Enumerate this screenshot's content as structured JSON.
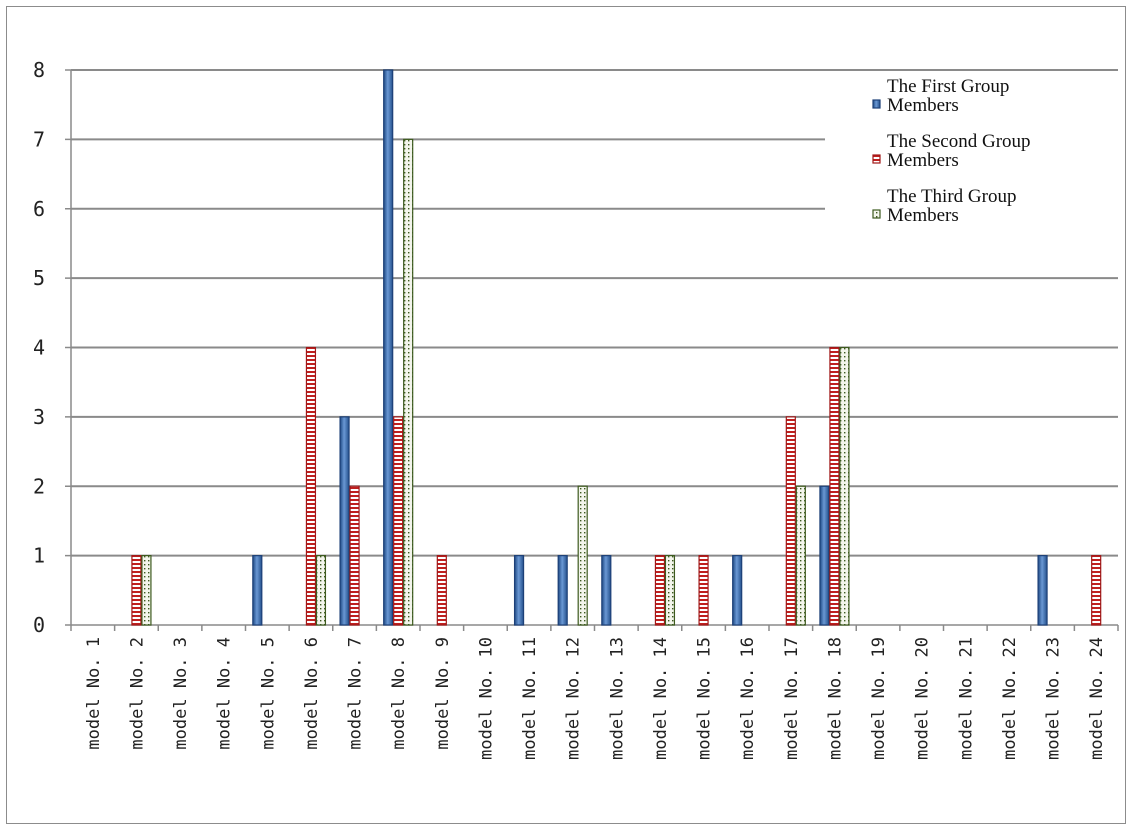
{
  "chart_data": {
    "type": "bar",
    "title": "",
    "xlabel": "",
    "ylabel": "",
    "ylim": [
      0,
      8
    ],
    "yticks": [
      0,
      1,
      2,
      3,
      4,
      5,
      6,
      7,
      8
    ],
    "grid": true,
    "legend_position": "top-right",
    "categories": [
      "model No. 1",
      "model No. 2",
      "model No. 3",
      "model No. 4",
      "model No. 5",
      "model No. 6",
      "model No. 7",
      "model No. 8",
      "model No. 9",
      "model No. 10",
      "model No. 11",
      "model No. 12",
      "model No. 13",
      "model No. 14",
      "model No. 15",
      "model No. 16",
      "model No. 17",
      "model No. 18",
      "model No. 19",
      "model No. 20",
      "model No. 21",
      "model No. 22",
      "model No. 23",
      "model No. 24"
    ],
    "series": [
      {
        "name": "The First Group Members",
        "legend_lines": [
          "The First Group",
          "Members"
        ],
        "color": "#2f5f9e",
        "pattern": "solid",
        "values": [
          0,
          0,
          0,
          0,
          1,
          0,
          3,
          8,
          0,
          0,
          1,
          1,
          1,
          0,
          0,
          1,
          0,
          2,
          0,
          0,
          0,
          0,
          1,
          0
        ]
      },
      {
        "name": "The Second Group Members",
        "legend_lines": [
          "The Second Group",
          "Members"
        ],
        "color": "#b81c1c",
        "pattern": "horizontal-stripes",
        "values": [
          0,
          1,
          0,
          0,
          0,
          4,
          2,
          3,
          1,
          0,
          0,
          0,
          0,
          1,
          1,
          0,
          3,
          4,
          0,
          0,
          0,
          0,
          0,
          1
        ]
      },
      {
        "name": "The Third Group Members",
        "legend_lines": [
          "The Third Group",
          "Members"
        ],
        "color": "#4e6b2e",
        "pattern": "dotted",
        "values": [
          0,
          1,
          0,
          0,
          0,
          1,
          0,
          7,
          0,
          0,
          0,
          2,
          0,
          1,
          0,
          0,
          2,
          4,
          0,
          0,
          0,
          0,
          0,
          0
        ]
      }
    ]
  }
}
